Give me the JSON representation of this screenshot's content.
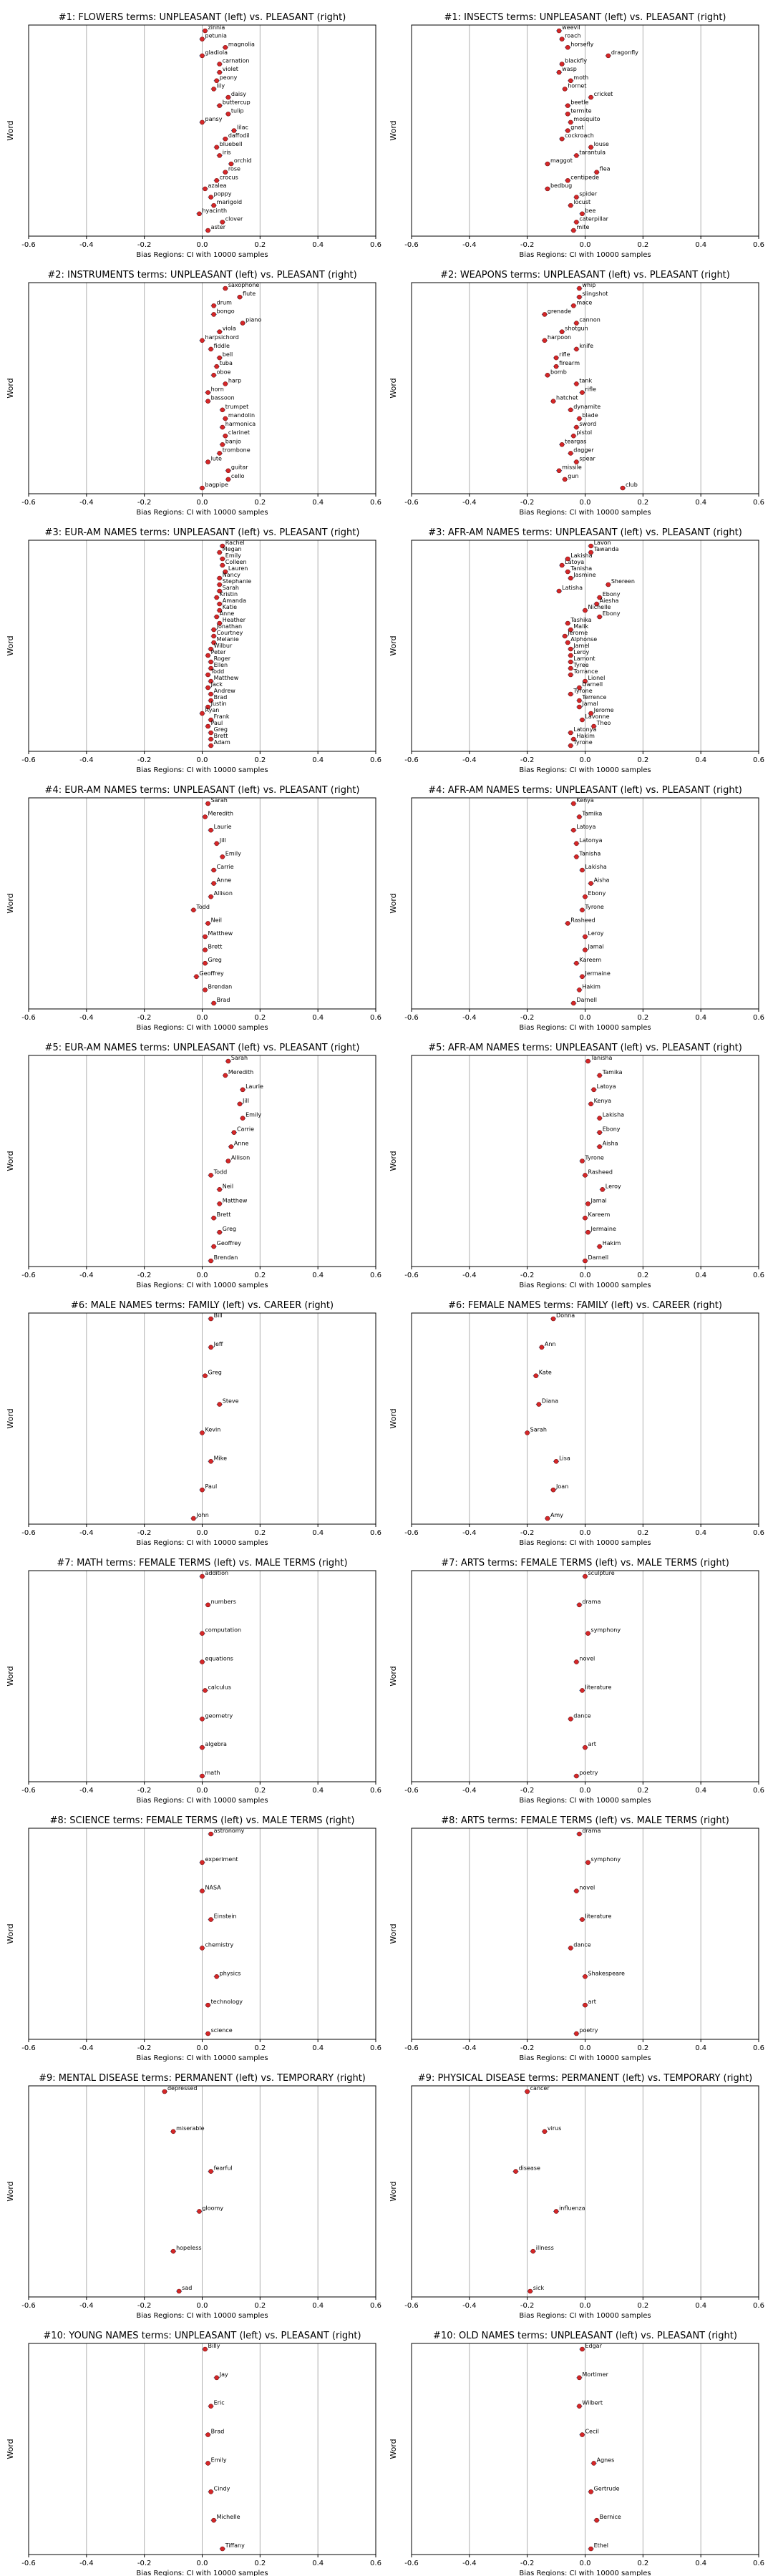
{
  "chart_data": [
    {
      "type": "scatter",
      "title": "#1: FLOWERS terms: UNPLEASANT (left) vs. PLEASANT (right)",
      "xlabel": "Bias Regions: CI with 10000 samples",
      "ylabel": "Word",
      "xlim": [
        -0.6,
        0.6
      ],
      "xticks": [
        "-0.6",
        "-0.4",
        "-0.2",
        "0.0",
        "0.2",
        "0.4",
        "0.6"
      ],
      "words": [
        "zinnia",
        "petunia",
        "magnolia",
        "gladiola",
        "carnation",
        "violet",
        "peony",
        "lily",
        "daisy",
        "buttercup",
        "tulip",
        "pansy",
        "lilac",
        "daffodil",
        "bluebell",
        "iris",
        "orchid",
        "rose",
        "crocus",
        "azalea",
        "poppy",
        "marigold",
        "hyacinth",
        "clover",
        "aster"
      ],
      "values": [
        0.01,
        0.0,
        0.08,
        0.0,
        0.06,
        0.06,
        0.05,
        0.04,
        0.09,
        0.06,
        0.09,
        0.0,
        0.11,
        0.08,
        0.05,
        0.06,
        0.1,
        0.08,
        0.05,
        0.01,
        0.03,
        0.04,
        -0.01,
        0.07,
        0.02
      ]
    },
    {
      "type": "scatter",
      "title": "#1: INSECTS terms: UNPLEASANT (left) vs. PLEASANT (right)",
      "xlabel": "Bias Regions: CI with 10000 samples",
      "ylabel": "Word",
      "xlim": [
        -0.6,
        0.6
      ],
      "xticks": [
        "-0.6",
        "-0.4",
        "-0.2",
        "0.0",
        "0.2",
        "0.4",
        "0.6"
      ],
      "words": [
        "weevil",
        "roach",
        "horsefly",
        "dragonfly",
        "blackfly",
        "wasp",
        "moth",
        "hornet",
        "cricket",
        "beetle",
        "termite",
        "mosquito",
        "gnat",
        "cockroach",
        "louse",
        "tarantula",
        "maggot",
        "flea",
        "centipede",
        "bedbug",
        "spider",
        "locust",
        "bee",
        "caterpillar",
        "mite"
      ],
      "values": [
        -0.09,
        -0.08,
        -0.06,
        0.08,
        -0.08,
        -0.09,
        -0.05,
        -0.07,
        0.02,
        -0.06,
        -0.06,
        -0.05,
        -0.06,
        -0.08,
        0.02,
        -0.03,
        -0.13,
        0.04,
        -0.06,
        -0.13,
        -0.03,
        -0.05,
        -0.01,
        -0.03,
        -0.04
      ]
    },
    {
      "type": "scatter",
      "title": "#2: INSTRUMENTS terms: UNPLEASANT (left) vs. PLEASANT (right)",
      "xlabel": "Bias Regions: CI with 10000 samples",
      "ylabel": "Word",
      "xlim": [
        -0.6,
        0.6
      ],
      "xticks": [
        "-0.6",
        "-0.4",
        "-0.2",
        "0.0",
        "0.2",
        "0.4",
        "0.6"
      ],
      "words": [
        "saxophone",
        "flute",
        "drum",
        "bongo",
        "piano",
        "viola",
        "harpsichord",
        "fiddle",
        "bell",
        "tuba",
        "oboe",
        "harp",
        "horn",
        "bassoon",
        "trumpet",
        "mandolin",
        "harmonica",
        "clarinet",
        "banjo",
        "trombone",
        "lute",
        "guitar",
        "cello",
        "bagpipe"
      ],
      "values": [
        0.08,
        0.13,
        0.04,
        0.04,
        0.14,
        0.06,
        0.0,
        0.03,
        0.06,
        0.05,
        0.04,
        0.08,
        0.02,
        0.02,
        0.07,
        0.08,
        0.07,
        0.08,
        0.07,
        0.06,
        0.02,
        0.09,
        0.09,
        0.0
      ]
    },
    {
      "type": "scatter",
      "title": "#2: WEAPONS terms: UNPLEASANT (left) vs. PLEASANT (right)",
      "xlabel": "Bias Regions: CI with 10000 samples",
      "ylabel": "Word",
      "xlim": [
        -0.6,
        0.6
      ],
      "xticks": [
        "-0.6",
        "-0.4",
        "-0.2",
        "0.0",
        "0.2",
        "0.4",
        "0.6"
      ],
      "words": [
        "whip",
        "slingshot",
        "mace",
        "grenade",
        "cannon",
        "shotgun",
        "harpoon",
        "knife",
        "rifle",
        "firearm",
        "bomb",
        "tank",
        "rifle",
        "hatchet",
        "dynamite",
        "blade",
        "sword",
        "pistol",
        "teargas",
        "dagger",
        "spear",
        "missile",
        "gun",
        "club"
      ],
      "values": [
        -0.02,
        -0.02,
        -0.04,
        -0.14,
        -0.03,
        -0.08,
        -0.14,
        -0.03,
        -0.1,
        -0.1,
        -0.13,
        -0.03,
        -0.01,
        -0.11,
        -0.05,
        -0.02,
        -0.03,
        -0.04,
        -0.08,
        -0.05,
        -0.03,
        -0.09,
        -0.07,
        0.13
      ]
    },
    {
      "type": "scatter",
      "title": "#3: EUR-AM NAMES terms: UNPLEASANT (left) vs. PLEASANT (right)",
      "xlabel": "Bias Regions: CI with 10000 samples",
      "ylabel": "Word",
      "xlim": [
        -0.6,
        0.6
      ],
      "xticks": [
        "-0.6",
        "-0.4",
        "-0.2",
        "0.0",
        "0.2",
        "0.4",
        "0.6"
      ],
      "words": [
        "Rachel",
        "Megan",
        "Emily",
        "Colleen",
        "Lauren",
        "Nancy",
        "Stephanie",
        "Sarah",
        "Kristin",
        "Amanda",
        "Katie",
        "Anne",
        "Heather",
        "Jonathan",
        "Courtney",
        "Melanie",
        "Wilbur",
        "Peter",
        "Roger",
        "Ellen",
        "Todd",
        "Matthew",
        "Jack",
        "Andrew",
        "Brad",
        "Justin",
        "Ryan",
        "Frank",
        "Paul",
        "Greg",
        "Brett",
        "Adam"
      ],
      "values": [
        0.07,
        0.06,
        0.07,
        0.07,
        0.08,
        0.06,
        0.06,
        0.06,
        0.05,
        0.06,
        0.06,
        0.05,
        0.06,
        0.04,
        0.04,
        0.04,
        0.03,
        0.02,
        0.03,
        0.03,
        0.02,
        0.03,
        0.02,
        0.03,
        0.03,
        0.02,
        0.0,
        0.03,
        0.02,
        0.03,
        0.03,
        0.03
      ]
    },
    {
      "type": "scatter",
      "title": "#3: AFR-AM NAMES terms: UNPLEASANT (left) vs. PLEASANT (right)",
      "xlabel": "Bias Regions: CI with 10000 samples",
      "ylabel": "Word",
      "xlim": [
        -0.6,
        0.6
      ],
      "xticks": [
        "-0.6",
        "-0.4",
        "-0.2",
        "0.0",
        "0.2",
        "0.4",
        "0.6"
      ],
      "words": [
        "Lavon",
        "Tawanda",
        "Lakisha",
        "Latoya",
        "Tanisha",
        "Jasmine",
        "Shereen",
        "Latisha",
        "Ebony",
        "Aiesha",
        "Nichelle",
        "Ebony",
        "Tashika",
        "Malik",
        "Jerome",
        "Alphonse",
        "Jamel",
        "Leroy",
        "Lamont",
        "Tyree",
        "Torrance",
        "Lionel",
        "Darnell",
        "Tyrone",
        "Terrence",
        "Jamal",
        "Jerome",
        "Lavonne",
        "Theo",
        "Latonya",
        "Hakim",
        "Tyrone"
      ],
      "values": [
        0.02,
        0.02,
        -0.06,
        -0.08,
        -0.06,
        -0.05,
        0.08,
        -0.09,
        0.05,
        0.04,
        0.0,
        0.05,
        -0.06,
        -0.05,
        -0.07,
        -0.06,
        -0.05,
        -0.05,
        -0.05,
        -0.05,
        -0.05,
        0.0,
        -0.02,
        -0.05,
        -0.02,
        -0.02,
        0.02,
        -0.01,
        0.03,
        -0.05,
        -0.04,
        -0.05
      ]
    },
    {
      "type": "scatter",
      "title": "#4: EUR-AM NAMES terms: UNPLEASANT (left) vs. PLEASANT (right)",
      "xlabel": "Bias Regions: CI with 10000 samples",
      "ylabel": "Word",
      "xlim": [
        -0.6,
        0.6
      ],
      "xticks": [
        "-0.6",
        "-0.4",
        "-0.2",
        "0.0",
        "0.2",
        "0.4",
        "0.6"
      ],
      "words": [
        "Sarah",
        "Meredith",
        "Laurie",
        "Jill",
        "Emily",
        "Carrie",
        "Anne",
        "Allison",
        "Todd",
        "Neil",
        "Matthew",
        "Brett",
        "Greg",
        "Geoffrey",
        "Brendan",
        "Brad"
      ],
      "values": [
        0.02,
        0.01,
        0.03,
        0.05,
        0.07,
        0.04,
        0.04,
        0.03,
        -0.03,
        0.02,
        0.01,
        0.01,
        0.01,
        -0.02,
        0.01,
        0.04
      ]
    },
    {
      "type": "scatter",
      "title": "#4: AFR-AM NAMES terms: UNPLEASANT (left) vs. PLEASANT (right)",
      "xlabel": "Bias Regions: CI with 10000 samples",
      "ylabel": "Word",
      "xlim": [
        -0.6,
        0.6
      ],
      "xticks": [
        "-0.6",
        "-0.4",
        "-0.2",
        "0.0",
        "0.2",
        "0.4",
        "0.6"
      ],
      "words": [
        "Kenya",
        "Tamika",
        "Latoya",
        "Latonya",
        "Tanisha",
        "Lakisha",
        "Aisha",
        "Ebony",
        "Tyrone",
        "Rasheed",
        "Leroy",
        "Jamal",
        "Kareem",
        "Jermaine",
        "Hakim",
        "Darnell"
      ],
      "values": [
        -0.04,
        -0.02,
        -0.04,
        -0.03,
        -0.03,
        -0.01,
        0.02,
        0.0,
        -0.01,
        -0.06,
        0.0,
        0.0,
        -0.03,
        -0.01,
        -0.02,
        -0.04
      ]
    },
    {
      "type": "scatter",
      "title": "#5: EUR-AM NAMES terms: UNPLEASANT (left) vs. PLEASANT (right)",
      "xlabel": "Bias Regions: CI with 10000 samples",
      "ylabel": "Word",
      "xlim": [
        -0.6,
        0.6
      ],
      "xticks": [
        "-0.6",
        "-0.4",
        "-0.2",
        "0.0",
        "0.2",
        "0.4",
        "0.6"
      ],
      "words": [
        "Sarah",
        "Meredith",
        "Laurie",
        "Jill",
        "Emily",
        "Carrie",
        "Anne",
        "Allison",
        "Todd",
        "Neil",
        "Matthew",
        "Brett",
        "Greg",
        "Geoffrey",
        "Brendan"
      ],
      "values": [
        0.09,
        0.08,
        0.14,
        0.13,
        0.14,
        0.11,
        0.1,
        0.09,
        0.03,
        0.06,
        0.06,
        0.04,
        0.06,
        0.04,
        0.03
      ]
    },
    {
      "type": "scatter",
      "title": "#5: AFR-AM NAMES terms: UNPLEASANT (left) vs. PLEASANT (right)",
      "xlabel": "Bias Regions: CI with 10000 samples",
      "ylabel": "Word",
      "xlim": [
        -0.6,
        0.6
      ],
      "xticks": [
        "-0.6",
        "-0.4",
        "-0.2",
        "0.0",
        "0.2",
        "0.4",
        "0.6"
      ],
      "words": [
        "Tanisha",
        "Tamika",
        "Latoya",
        "Kenya",
        "Lakisha",
        "Ebony",
        "Aisha",
        "Tyrone",
        "Rasheed",
        "Leroy",
        "Jamal",
        "Kareem",
        "Jermaine",
        "Hakim",
        "Darnell"
      ],
      "values": [
        0.01,
        0.05,
        0.03,
        0.02,
        0.05,
        0.05,
        0.05,
        -0.01,
        0.0,
        0.06,
        0.01,
        0.0,
        0.01,
        0.05,
        0.0
      ]
    },
    {
      "type": "scatter",
      "title": "#6: MALE NAMES terms: FAMILY (left) vs. CAREER (right)",
      "xlabel": "Bias Regions: CI with 10000 samples",
      "ylabel": "Word",
      "xlim": [
        -0.6,
        0.6
      ],
      "xticks": [
        "-0.6",
        "-0.4",
        "-0.2",
        "0.0",
        "0.2",
        "0.4",
        "0.6"
      ],
      "words": [
        "Bill",
        "Jeff",
        "Greg",
        "Steve",
        "Kevin",
        "Mike",
        "Paul",
        "John"
      ],
      "values": [
        0.03,
        0.03,
        0.01,
        0.06,
        0.0,
        0.03,
        0.0,
        -0.03
      ]
    },
    {
      "type": "scatter",
      "title": "#6: FEMALE NAMES terms: FAMILY (left) vs. CAREER (right)",
      "xlabel": "Bias Regions: CI with 10000 samples",
      "ylabel": "Word",
      "xlim": [
        -0.6,
        0.6
      ],
      "xticks": [
        "-0.6",
        "-0.4",
        "-0.2",
        "0.0",
        "0.2",
        "0.4",
        "0.6"
      ],
      "words": [
        "Donna",
        "Ann",
        "Kate",
        "Diana",
        "Sarah",
        "Lisa",
        "Joan",
        "Amy"
      ],
      "values": [
        -0.11,
        -0.15,
        -0.17,
        -0.16,
        -0.2,
        -0.1,
        -0.11,
        -0.13
      ]
    },
    {
      "type": "scatter",
      "title": "#7: MATH terms: FEMALE TERMS (left) vs. MALE TERMS (right)",
      "xlabel": "Bias Regions: CI with 10000 samples",
      "ylabel": "Word",
      "xlim": [
        -0.6,
        0.6
      ],
      "xticks": [
        "-0.6",
        "-0.4",
        "-0.2",
        "0.0",
        "0.2",
        "0.4",
        "0.6"
      ],
      "words": [
        "addition",
        "numbers",
        "computation",
        "equations",
        "calculus",
        "geometry",
        "algebra",
        "math"
      ],
      "values": [
        0.0,
        0.02,
        0.0,
        0.0,
        0.01,
        0.0,
        0.0,
        0.0
      ]
    },
    {
      "type": "scatter",
      "title": "#7: ARTS terms: FEMALE TERMS (left) vs. MALE TERMS (right)",
      "xlabel": "Bias Regions: CI with 10000 samples",
      "ylabel": "Word",
      "xlim": [
        -0.6,
        0.6
      ],
      "xticks": [
        "-0.6",
        "-0.4",
        "-0.2",
        "0.0",
        "0.2",
        "0.4",
        "0.6"
      ],
      "words": [
        "sculpture",
        "drama",
        "symphony",
        "novel",
        "literature",
        "dance",
        "art",
        "poetry"
      ],
      "values": [
        0.0,
        -0.02,
        0.01,
        -0.03,
        -0.01,
        -0.05,
        0.0,
        -0.03
      ]
    },
    {
      "type": "scatter",
      "title": "#8: SCIENCE terms: FEMALE TERMS (left) vs. MALE TERMS (right)",
      "xlabel": "Bias Regions: CI with 10000 samples",
      "ylabel": "Word",
      "xlim": [
        -0.6,
        0.6
      ],
      "xticks": [
        "-0.6",
        "-0.4",
        "-0.2",
        "0.0",
        "0.2",
        "0.4",
        "0.6"
      ],
      "words": [
        "astronomy",
        "experiment",
        "NASA",
        "Einstein",
        "chemistry",
        "physics",
        "technology",
        "science"
      ],
      "values": [
        0.03,
        0.0,
        0.0,
        0.03,
        0.0,
        0.05,
        0.02,
        0.02
      ]
    },
    {
      "type": "scatter",
      "title": "#8: ARTS terms: FEMALE TERMS (left) vs. MALE TERMS (right)",
      "xlabel": "Bias Regions: CI with 10000 samples",
      "ylabel": "Word",
      "xlim": [
        -0.6,
        0.6
      ],
      "xticks": [
        "-0.6",
        "-0.4",
        "-0.2",
        "0.0",
        "0.2",
        "0.4",
        "0.6"
      ],
      "words": [
        "drama",
        "symphony",
        "novel",
        "literature",
        "dance",
        "Shakespeare",
        "art",
        "poetry"
      ],
      "values": [
        -0.02,
        0.01,
        -0.03,
        -0.01,
        -0.05,
        0.0,
        0.0,
        -0.03
      ]
    },
    {
      "type": "scatter",
      "title": "#9: MENTAL DISEASE terms: PERMANENT (left) vs. TEMPORARY (right)",
      "xlabel": "Bias Regions: CI with 10000 samples",
      "ylabel": "Word",
      "xlim": [
        -0.6,
        0.6
      ],
      "xticks": [
        "-0.6",
        "-0.4",
        "-0.2",
        "0.0",
        "0.2",
        "0.4",
        "0.6"
      ],
      "words": [
        "depressed",
        "miserable",
        "fearful",
        "gloomy",
        "hopeless",
        "sad"
      ],
      "values": [
        -0.13,
        -0.1,
        0.03,
        -0.01,
        -0.1,
        -0.08
      ]
    },
    {
      "type": "scatter",
      "title": "#9: PHYSICAL DISEASE terms: PERMANENT (left) vs. TEMPORARY (right)",
      "xlabel": "Bias Regions: CI with 10000 samples",
      "ylabel": "Word",
      "xlim": [
        -0.6,
        0.6
      ],
      "xticks": [
        "-0.6",
        "-0.4",
        "-0.2",
        "0.0",
        "0.2",
        "0.4",
        "0.6"
      ],
      "words": [
        "cancer",
        "virus",
        "disease",
        "influenza",
        "illness",
        "sick"
      ],
      "values": [
        -0.2,
        -0.14,
        -0.24,
        -0.1,
        -0.18,
        -0.19
      ]
    },
    {
      "type": "scatter",
      "title": "#10: YOUNG NAMES terms: UNPLEASANT (left) vs. PLEASANT (right)",
      "xlabel": "Bias Regions: CI with 10000 samples",
      "ylabel": "Word",
      "xlim": [
        -0.6,
        0.6
      ],
      "xticks": [
        "-0.6",
        "-0.4",
        "-0.2",
        "0.0",
        "0.2",
        "0.4",
        "0.6"
      ],
      "words": [
        "Billy",
        "Jay",
        "Eric",
        "Brad",
        "Emily",
        "Cindy",
        "Michelle",
        "Tiffany"
      ],
      "values": [
        0.01,
        0.05,
        0.03,
        0.02,
        0.02,
        0.03,
        0.04,
        0.07
      ]
    },
    {
      "type": "scatter",
      "title": "#10: OLD NAMES terms: UNPLEASANT (left) vs. PLEASANT (right)",
      "xlabel": "Bias Regions: CI with 10000 samples",
      "ylabel": "Word",
      "xlim": [
        -0.6,
        0.6
      ],
      "xticks": [
        "-0.6",
        "-0.4",
        "-0.2",
        "0.0",
        "0.2",
        "0.4",
        "0.6"
      ],
      "words": [
        "Edgar",
        "Mortimer",
        "Wilbert",
        "Cecil",
        "Agnes",
        "Gertrude",
        "Bernice",
        "Ethel"
      ],
      "values": [
        -0.01,
        -0.02,
        -0.02,
        -0.01,
        0.03,
        0.02,
        0.04,
        0.02
      ]
    }
  ]
}
